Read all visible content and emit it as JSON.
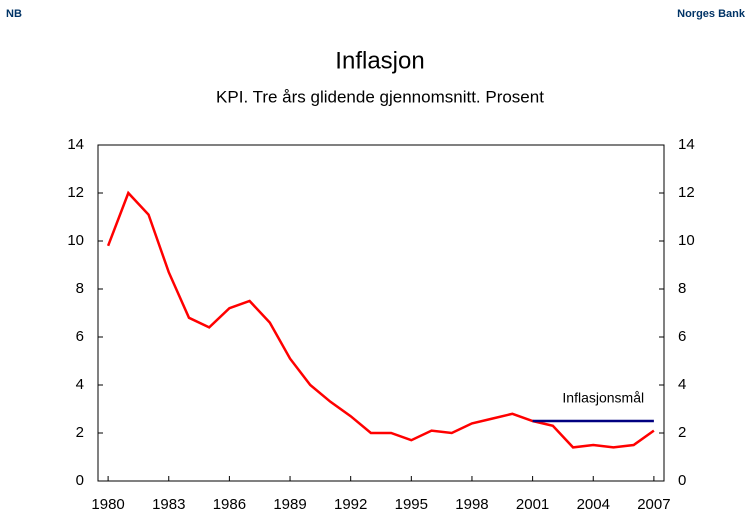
{
  "header": {
    "logo": "NB",
    "org": "Norges Bank"
  },
  "chart_data": {
    "type": "line",
    "title": "Inflasjon",
    "subtitle": "KPI. Tre års glidende gjennomsnitt. Prosent",
    "series": [
      {
        "name": "KPI",
        "color": "#ff0000",
        "x": [
          1980,
          1981,
          1982,
          1983,
          1984,
          1985,
          1986,
          1987,
          1988,
          1989,
          1990,
          1991,
          1992,
          1993,
          1994,
          1995,
          1996,
          1997,
          1998,
          1999,
          2000,
          2001,
          2002,
          2003,
          2004,
          2005,
          2006,
          2007
        ],
        "values": [
          9.8,
          12.0,
          11.1,
          8.7,
          6.8,
          6.4,
          7.2,
          7.5,
          6.6,
          5.1,
          4.0,
          3.3,
          2.7,
          2.0,
          2.0,
          1.7,
          2.1,
          2.0,
          2.4,
          2.6,
          2.8,
          2.5,
          2.3,
          1.4,
          1.5,
          1.4,
          1.5,
          2.1
        ]
      },
      {
        "name": "Inflasjonsmål",
        "color": "#000080",
        "x": [
          2001,
          2007
        ],
        "values": [
          2.5,
          2.5
        ]
      }
    ],
    "xlim": [
      1979.5,
      2007.5
    ],
    "xticks": [
      1980,
      1983,
      1986,
      1989,
      1992,
      1995,
      1998,
      2001,
      2004,
      2007
    ],
    "ylim": [
      0,
      14
    ],
    "yticks": [
      0,
      2,
      4,
      6,
      8,
      10,
      12,
      14
    ],
    "y2lim": [
      0,
      14
    ],
    "y2ticks": [
      0,
      2,
      4,
      6,
      8,
      10,
      12,
      14
    ]
  }
}
